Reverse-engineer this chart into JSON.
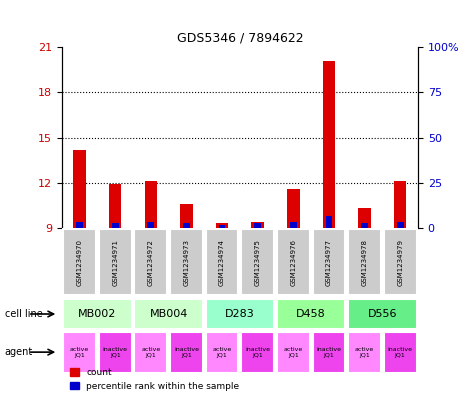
{
  "title": "GDS5346 / 7894622",
  "gsm_labels": [
    "GSM1234970",
    "GSM1234971",
    "GSM1234972",
    "GSM1234973",
    "GSM1234974",
    "GSM1234975",
    "GSM1234976",
    "GSM1234977",
    "GSM1234978",
    "GSM1234979"
  ],
  "red_values": [
    14.2,
    11.9,
    12.1,
    10.6,
    9.3,
    9.4,
    11.6,
    20.1,
    10.3,
    12.1
  ],
  "blue_values": [
    9.4,
    9.3,
    9.4,
    9.3,
    9.2,
    9.3,
    9.4,
    9.8,
    9.3,
    9.4
  ],
  "ymin": 9,
  "ymax": 21,
  "yticks_left": [
    9,
    12,
    15,
    18,
    21
  ],
  "yticks_right": [
    0,
    25,
    50,
    75,
    100
  ],
  "cell_lines": [
    {
      "label": "MB002",
      "color": "#ccffcc",
      "span": [
        0,
        2
      ]
    },
    {
      "label": "MB004",
      "color": "#ccffcc",
      "span": [
        2,
        4
      ]
    },
    {
      "label": "D283",
      "color": "#99ffcc",
      "span": [
        4,
        6
      ]
    },
    {
      "label": "D458",
      "color": "#99ff99",
      "span": [
        6,
        8
      ]
    },
    {
      "label": "D556",
      "color": "#66ee88",
      "span": [
        8,
        10
      ]
    }
  ],
  "bar_color_red": "#dd0000",
  "bar_color_blue": "#0000cc",
  "bar_width": 0.35,
  "background_color": "#ffffff",
  "gsm_box_color": "#cccccc",
  "left_axis_color": "#cc0000",
  "right_axis_color": "#0000cc",
  "ag_active_color": "#ff88ff",
  "ag_inactive_color": "#ee44ee"
}
